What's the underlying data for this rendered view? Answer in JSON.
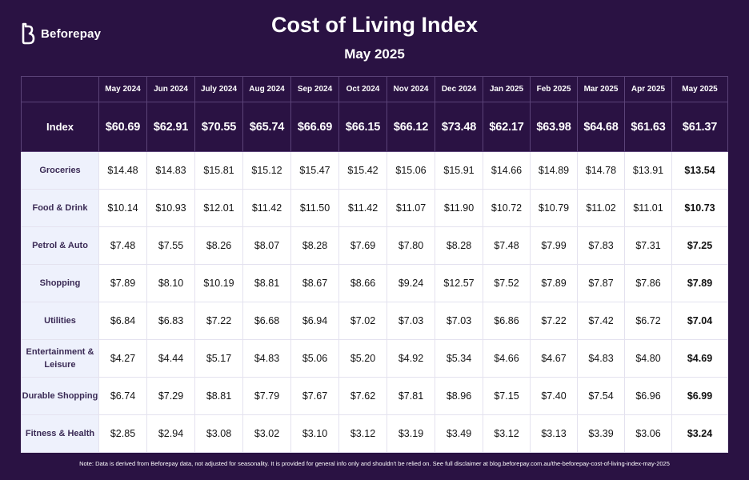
{
  "brand": {
    "name": "Beforepay",
    "logo_icon": "beforepay-logo-icon"
  },
  "title": "Cost of Living Index",
  "subtitle": "May 2025",
  "table": {
    "months": [
      "May 2024",
      "Jun 2024",
      "July 2024",
      "Aug 2024",
      "Sep 2024",
      "Oct 2024",
      "Nov 2024",
      "Dec 2024",
      "Jan 2025",
      "Feb 2025",
      "Mar 2025",
      "Apr 2025",
      "May 2025"
    ],
    "index_row": {
      "label": "Index",
      "values": [
        "$60.69",
        "$62.91",
        "$70.55",
        "$65.74",
        "$66.69",
        "$66.15",
        "$66.12",
        "$73.48",
        "$62.17",
        "$63.98",
        "$64.68",
        "$61.63",
        "$61.37"
      ]
    },
    "rows": [
      {
        "label": "Groceries",
        "values": [
          "$14.48",
          "$14.83",
          "$15.81",
          "$15.12",
          "$15.47",
          "$15.42",
          "$15.06",
          "$15.91",
          "$14.66",
          "$14.89",
          "$14.78",
          "$13.91",
          "$13.54"
        ]
      },
      {
        "label": "Food & Drink",
        "values": [
          "$10.14",
          "$10.93",
          "$12.01",
          "$11.42",
          "$11.50",
          "$11.42",
          "$11.07",
          "$11.90",
          "$10.72",
          "$10.79",
          "$11.02",
          "$11.01",
          "$10.73"
        ]
      },
      {
        "label": "Petrol & Auto",
        "values": [
          "$7.48",
          "$7.55",
          "$8.26",
          "$8.07",
          "$8.28",
          "$7.69",
          "$7.80",
          "$8.28",
          "$7.48",
          "$7.99",
          "$7.83",
          "$7.31",
          "$7.25"
        ]
      },
      {
        "label": "Shopping",
        "values": [
          "$7.89",
          "$8.10",
          "$10.19",
          "$8.81",
          "$8.67",
          "$8.66",
          "$9.24",
          "$12.57",
          "$7.52",
          "$7.89",
          "$7.87",
          "$7.86",
          "$7.89"
        ]
      },
      {
        "label": "Utilities",
        "values": [
          "$6.84",
          "$6.83",
          "$7.22",
          "$6.68",
          "$6.94",
          "$7.02",
          "$7.03",
          "$7.03",
          "$6.86",
          "$7.22",
          "$7.42",
          "$6.72",
          "$7.04"
        ]
      },
      {
        "label": "Entertainment & Leisure",
        "values": [
          "$4.27",
          "$4.44",
          "$5.17",
          "$4.83",
          "$5.06",
          "$5.20",
          "$4.92",
          "$5.34",
          "$4.66",
          "$4.67",
          "$4.83",
          "$4.80",
          "$4.69"
        ]
      },
      {
        "label": "Durable Shopping",
        "values": [
          "$6.74",
          "$7.29",
          "$8.81",
          "$7.79",
          "$7.67",
          "$7.62",
          "$7.81",
          "$8.96",
          "$7.15",
          "$7.40",
          "$7.54",
          "$6.96",
          "$6.99"
        ]
      },
      {
        "label": "Fitness & Health",
        "values": [
          "$2.85",
          "$2.94",
          "$3.08",
          "$3.02",
          "$3.10",
          "$3.12",
          "$3.19",
          "$3.49",
          "$3.12",
          "$3.13",
          "$3.39",
          "$3.06",
          "$3.24"
        ]
      }
    ]
  },
  "note": "Note: Data is derived from Beforepay data, not adjusted for seasonality. It is provided for general info only and shouldn't be relied on. See full disclaimer at blog.beforepay.com.au/the-beforepay-cost-of-living-index-may-2025",
  "colors": {
    "background": "#2a1243",
    "header_border": "#5b4378",
    "row_label_bg": "#eef1fc",
    "cell_bg": "#ffffff"
  }
}
